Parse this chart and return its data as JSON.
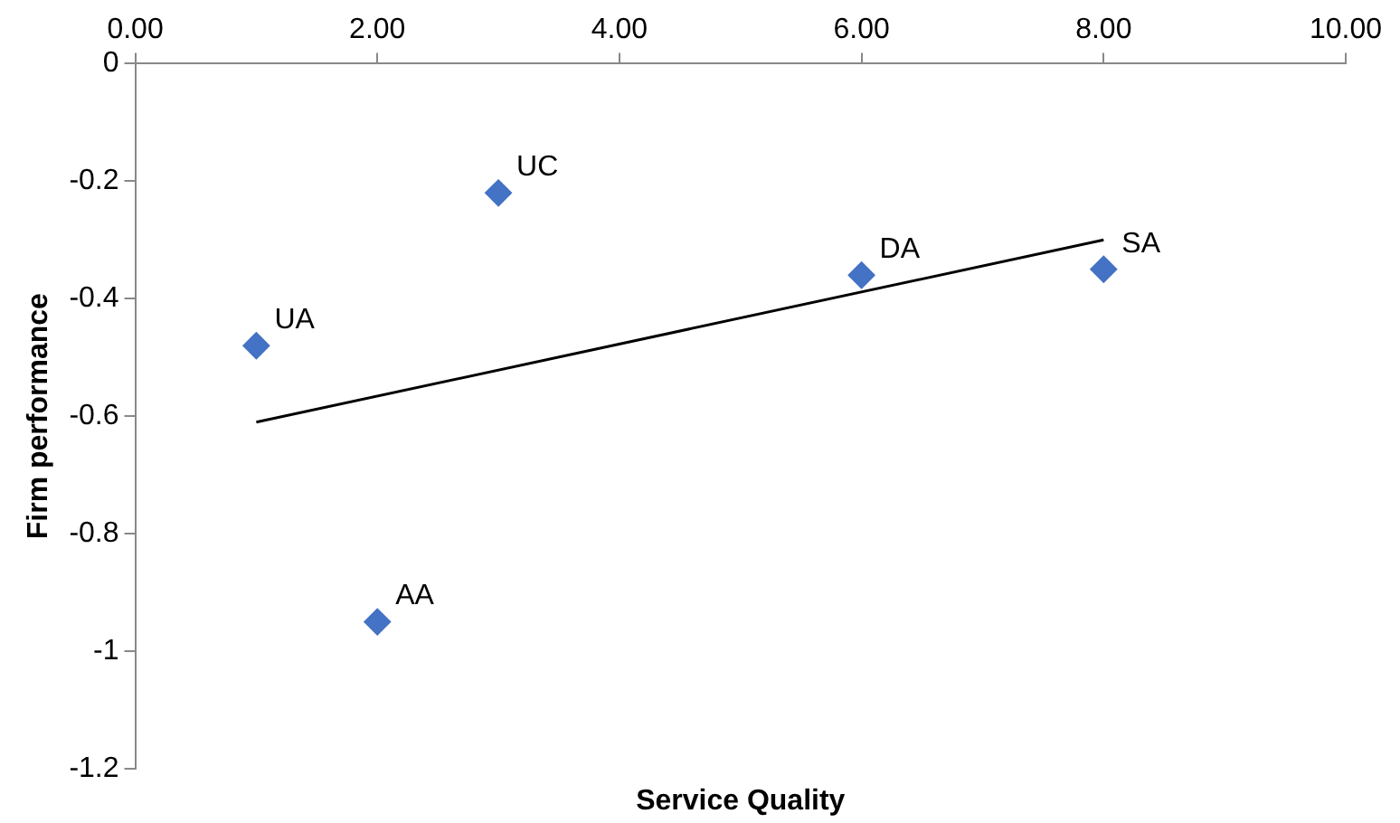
{
  "chart_data": {
    "type": "scatter",
    "xlabel": "Service Quality",
    "ylabel": "Firm performance",
    "xlim": [
      0,
      10
    ],
    "xticks": [
      {
        "value": 0,
        "label": "0.00"
      },
      {
        "value": 2,
        "label": "2.00"
      },
      {
        "value": 4,
        "label": "4.00"
      },
      {
        "value": 6,
        "label": "6.00"
      },
      {
        "value": 8,
        "label": "8.00"
      },
      {
        "value": 10,
        "label": "10.00"
      }
    ],
    "ylim": [
      -1.2,
      0
    ],
    "yticks": [
      0,
      -0.2,
      -0.4,
      -0.6,
      -0.8,
      -1,
      -1.2
    ],
    "series": [
      {
        "color": "#4472c4",
        "marker": "diamond",
        "x": [
          1,
          2,
          3,
          6,
          8
        ],
        "values": [
          -0.48,
          -0.95,
          -0.22,
          -0.36,
          -0.35
        ]
      },
      {
        "type": "line",
        "color": "#000000",
        "marker": "none",
        "x": [
          1,
          8
        ],
        "values": [
          -0.61,
          -0.3
        ]
      }
    ],
    "annotations": [
      {
        "text": "UA",
        "x": 1,
        "y": -0.48
      },
      {
        "text": "AA",
        "x": 2,
        "y": -0.95
      },
      {
        "text": "UC",
        "x": 3,
        "y": -0.22
      },
      {
        "text": "DA",
        "x": 6,
        "y": -0.36
      },
      {
        "text": "SA",
        "x": 8,
        "y": -0.35
      }
    ],
    "grid": false,
    "legend": false
  }
}
